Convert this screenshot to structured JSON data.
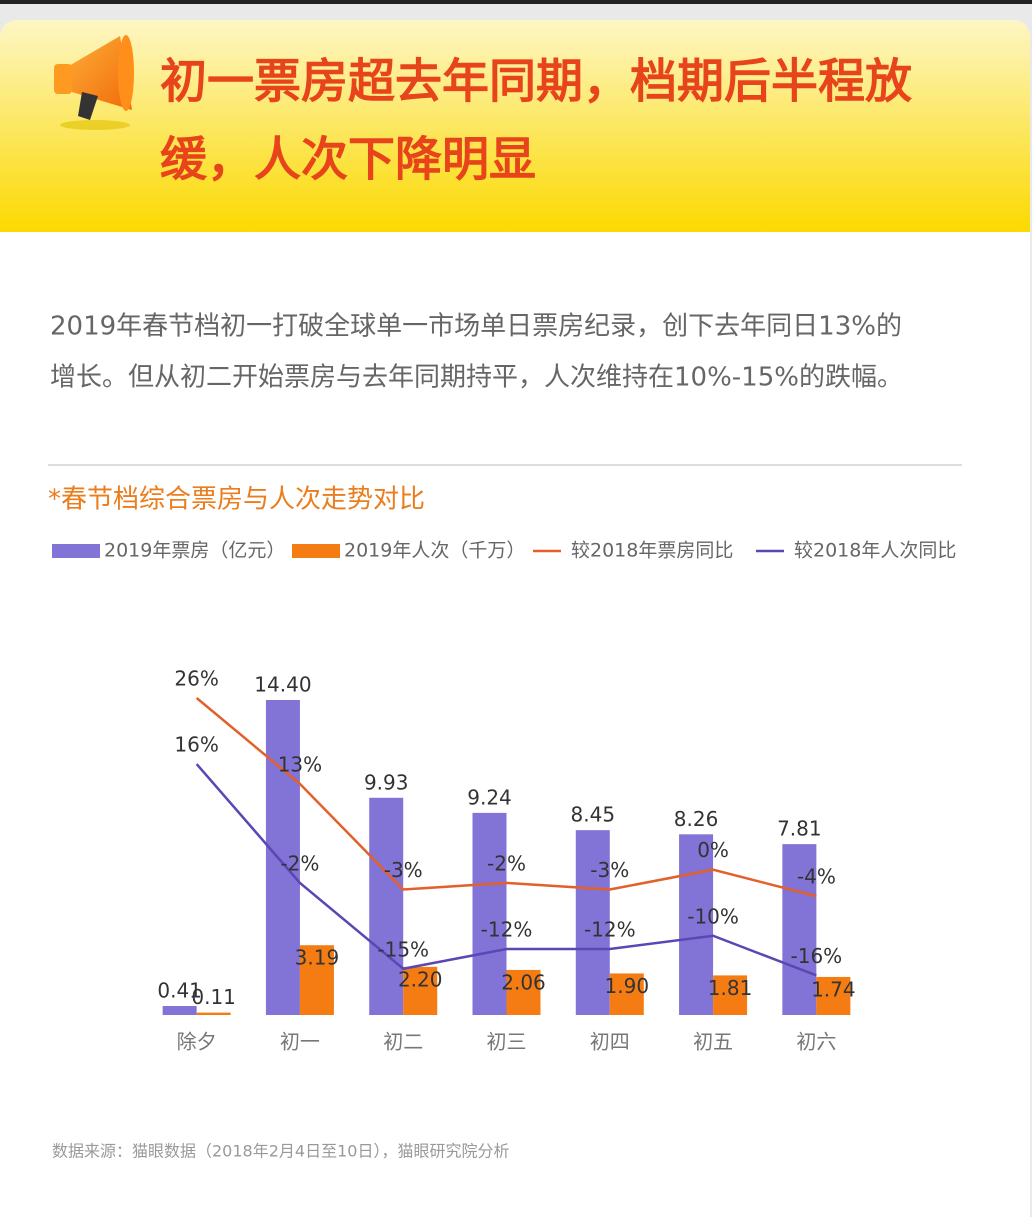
{
  "header": {
    "title_lines": [
      "初一票房超去年同期，档期后半程放",
      "缓，人次下降明显"
    ]
  },
  "paragraph": [
    "2019年春节档初一打破全球单一市场单日票房纪录，创下去年同日13%的",
    "增长。但从初二开始票房与去年同期持平，人次维持在10%-15%的跌幅。"
  ],
  "chart_data": {
    "type": "combo",
    "title": "*春节档综合票房与人次走势对比",
    "categories": [
      "除夕",
      "初一",
      "初二",
      "初三",
      "初四",
      "初五",
      "初六"
    ],
    "series": [
      {
        "name": "2019年票房（亿元）",
        "type": "bar",
        "color": "#8273d6",
        "values": [
          0.41,
          14.4,
          9.93,
          9.24,
          8.45,
          8.26,
          7.81
        ],
        "value_labels": [
          "0.41",
          "14.40",
          "9.93",
          "9.24",
          "8.45",
          "8.26",
          "7.81"
        ]
      },
      {
        "name": "2019年人次（千万）",
        "type": "bar",
        "color": "#f47c12",
        "values": [
          0.11,
          3.19,
          2.2,
          2.06,
          1.9,
          1.81,
          1.74
        ],
        "value_labels": [
          "0.11",
          "3.19",
          "2.20",
          "2.06",
          "1.90",
          "1.81",
          "1.74"
        ]
      },
      {
        "name": "较2018年票房同比",
        "type": "line",
        "axis": "y2",
        "color": "#e3602a",
        "values": [
          26,
          13,
          -3,
          -2,
          -3,
          0,
          -4
        ],
        "value_labels": [
          "26%",
          "13%",
          "-3%",
          "-2%",
          "-3%",
          "0%",
          "-4%"
        ]
      },
      {
        "name": "较2018年人次同比",
        "type": "line",
        "axis": "y2",
        "color": "#5b46b4",
        "values": [
          16,
          -2,
          -15,
          -12,
          -12,
          -10,
          -16
        ],
        "value_labels": [
          "16%",
          "-2%",
          "-15%",
          "-12%",
          "-12%",
          "-10%",
          "-16%"
        ]
      }
    ],
    "ylim": [
      0,
      16
    ],
    "y2lim": [
      -22,
      31
    ]
  },
  "source": "数据来源：猫眼数据（2018年2月4日至10日），猫眼研究院分析"
}
